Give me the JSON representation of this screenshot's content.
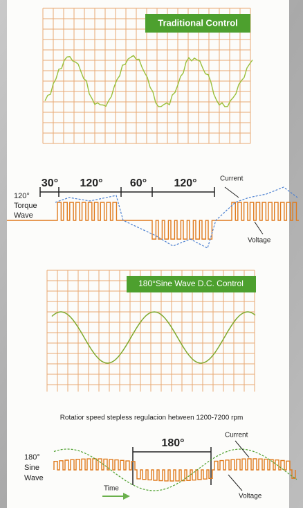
{
  "traditional": {
    "label": "Traditional Control"
  },
  "torque_wave": {
    "angles": [
      "30°",
      "120°",
      "60°",
      "120°"
    ],
    "label": [
      "120°",
      "Torque",
      "Wave"
    ],
    "current": "Current",
    "voltage": "Voltage"
  },
  "sine_control": {
    "label": "180°Sine Wave D.C. Control"
  },
  "caption": "Rotatior speed stepless regulacion hetween 1200-7200 rpm",
  "sine_wave": {
    "angle": "180°",
    "label": [
      "180°",
      "Sine",
      "Wave"
    ],
    "current": "Current",
    "voltage": "Voltage",
    "time": "Time"
  }
}
